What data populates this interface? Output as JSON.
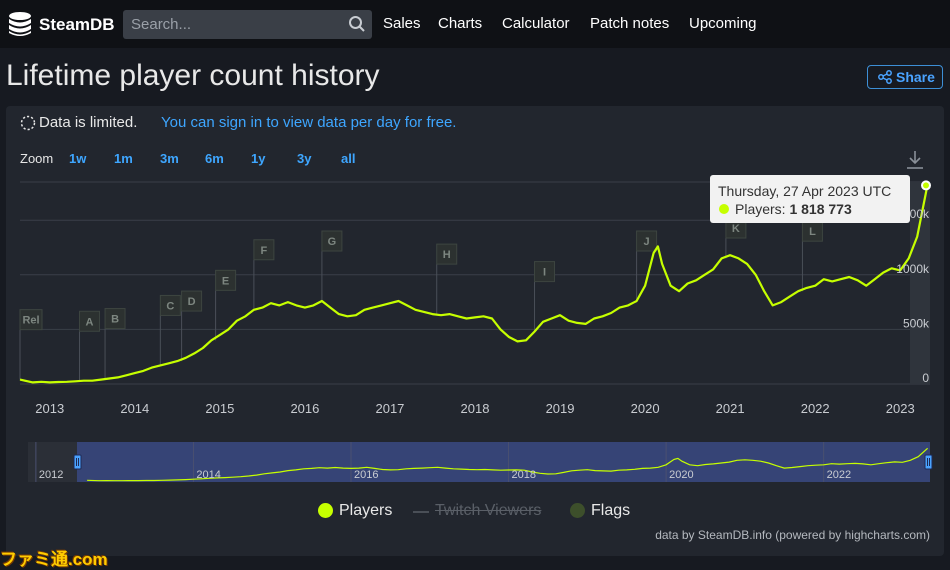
{
  "nav": {
    "brand": "SteamDB",
    "search_placeholder": "Search...",
    "links": [
      "Sales",
      "Charts",
      "Calculator",
      "Patch notes",
      "Upcoming"
    ]
  },
  "page_title": "Lifetime player count history",
  "share_label": "Share",
  "limited": {
    "text": "Data is limited.",
    "link": "You can sign in to view data per day for free."
  },
  "zoom": {
    "label": "Zoom",
    "options": [
      "1w",
      "1m",
      "3m",
      "6m",
      "1y",
      "3y",
      "all"
    ]
  },
  "tooltip": {
    "date": "Thursday, 27 Apr 2023 UTC",
    "series": "Players:",
    "value": "1 818 773"
  },
  "legend": {
    "players": "Players",
    "twitch": "Twitch Viewers",
    "flags": "Flags"
  },
  "credit": "data by SteamDB.info (powered by highcharts.com)",
  "watermark": "ファミ通.com",
  "colors": {
    "players": "#c6ff00",
    "flags": "#3d4f2b",
    "accent": "#3ea6ff",
    "navigator": "#3b4c8c"
  },
  "chart_data": {
    "type": "line",
    "title": "",
    "xlabel": "",
    "ylabel": "",
    "yticks": [
      "0",
      "500k",
      "1000k",
      "1 500k"
    ],
    "ylim": [
      0,
      1850000
    ],
    "xticks": [
      "2013",
      "2014",
      "2015",
      "2016",
      "2017",
      "2018",
      "2019",
      "2020",
      "2021",
      "2022",
      "2023"
    ],
    "navigator_ticks": [
      "2012",
      "2014",
      "2016",
      "2018",
      "2020",
      "2022"
    ],
    "flags": [
      {
        "label": "Rel",
        "x": 2012.65
      },
      {
        "label": "A",
        "x": 2013.35
      },
      {
        "label": "B",
        "x": 2013.65
      },
      {
        "label": "C",
        "x": 2014.3
      },
      {
        "label": "D",
        "x": 2014.55
      },
      {
        "label": "E",
        "x": 2014.95
      },
      {
        "label": "F",
        "x": 2015.4
      },
      {
        "label": "G",
        "x": 2016.2
      },
      {
        "label": "H",
        "x": 2017.55
      },
      {
        "label": "I",
        "x": 2018.7
      },
      {
        "label": "J",
        "x": 2019.9
      },
      {
        "label": "K",
        "x": 2020.95
      },
      {
        "label": "L",
        "x": 2021.85
      }
    ],
    "series": [
      {
        "name": "Players",
        "x": [
          2012.65,
          2012.8,
          2012.9,
          2013.0,
          2013.1,
          2013.2,
          2013.3,
          2013.4,
          2013.5,
          2013.6,
          2013.7,
          2013.8,
          2013.9,
          2014.0,
          2014.1,
          2014.2,
          2014.3,
          2014.4,
          2014.5,
          2014.6,
          2014.7,
          2014.8,
          2014.9,
          2015.0,
          2015.1,
          2015.2,
          2015.3,
          2015.4,
          2015.5,
          2015.6,
          2015.7,
          2015.8,
          2015.9,
          2016.0,
          2016.1,
          2016.2,
          2016.3,
          2016.4,
          2016.5,
          2016.6,
          2016.7,
          2016.8,
          2016.9,
          2017.0,
          2017.1,
          2017.2,
          2017.3,
          2017.4,
          2017.5,
          2017.6,
          2017.7,
          2017.8,
          2017.9,
          2018.0,
          2018.1,
          2018.2,
          2018.3,
          2018.4,
          2018.5,
          2018.6,
          2018.7,
          2018.8,
          2018.9,
          2019.0,
          2019.1,
          2019.2,
          2019.3,
          2019.4,
          2019.5,
          2019.6,
          2019.7,
          2019.8,
          2019.9,
          2020.0,
          2020.1,
          2020.15,
          2020.2,
          2020.3,
          2020.4,
          2020.5,
          2020.6,
          2020.7,
          2020.8,
          2020.9,
          2021.0,
          2021.1,
          2021.2,
          2021.3,
          2021.4,
          2021.5,
          2021.6,
          2021.7,
          2021.8,
          2021.9,
          2022.0,
          2022.1,
          2022.2,
          2022.3,
          2022.4,
          2022.5,
          2022.6,
          2022.7,
          2022.8,
          2022.9,
          2023.0,
          2023.1,
          2023.2,
          2023.32
        ],
        "values": [
          40000,
          15000,
          20000,
          15000,
          18000,
          20000,
          25000,
          30000,
          30000,
          40000,
          50000,
          60000,
          80000,
          100000,
          120000,
          150000,
          170000,
          190000,
          210000,
          240000,
          280000,
          330000,
          400000,
          450000,
          500000,
          580000,
          620000,
          680000,
          700000,
          740000,
          720000,
          750000,
          720000,
          700000,
          720000,
          760000,
          700000,
          640000,
          620000,
          630000,
          680000,
          700000,
          720000,
          740000,
          760000,
          720000,
          680000,
          660000,
          640000,
          630000,
          640000,
          620000,
          600000,
          610000,
          620000,
          600000,
          500000,
          430000,
          390000,
          400000,
          480000,
          570000,
          600000,
          630000,
          580000,
          560000,
          550000,
          600000,
          620000,
          650000,
          700000,
          720000,
          760000,
          900000,
          1200000,
          1260000,
          1100000,
          900000,
          850000,
          920000,
          950000,
          1000000,
          1050000,
          1150000,
          1180000,
          1150000,
          1100000,
          1000000,
          850000,
          720000,
          750000,
          800000,
          850000,
          880000,
          900000,
          960000,
          940000,
          960000,
          980000,
          950000,
          900000,
          960000,
          1020000,
          1060000,
          1040000,
          1150000,
          1350000,
          1818773
        ]
      }
    ]
  }
}
